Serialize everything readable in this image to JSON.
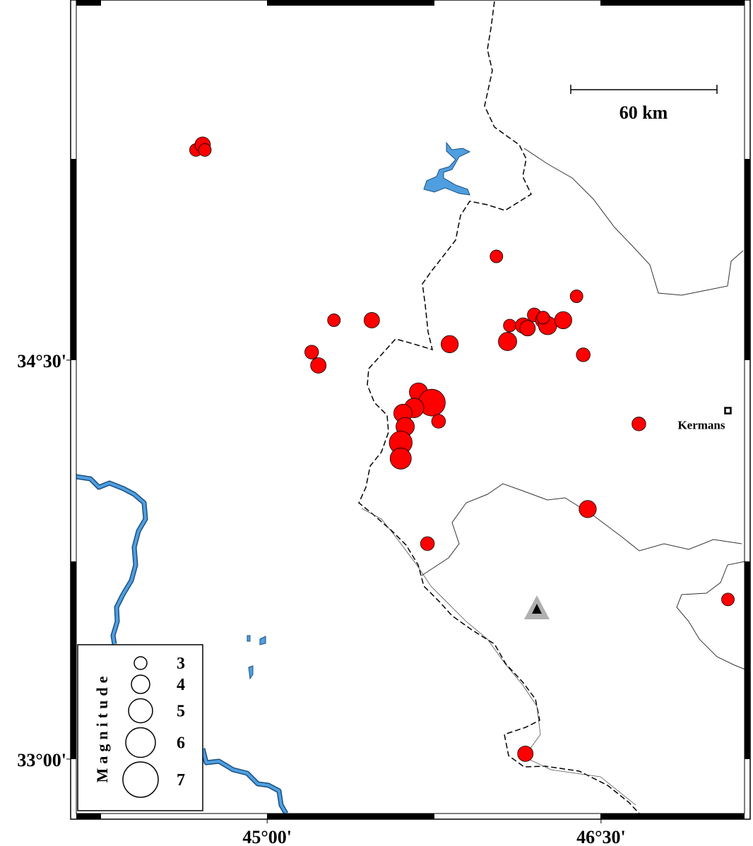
{
  "map": {
    "xlim": [
      44.117,
      47.17
    ],
    "ylim": [
      32.774,
      35.854
    ],
    "xticks": [
      {
        "value": 45,
        "label": "45°00'"
      },
      {
        "value": 46.5,
        "label": "46°30'"
      }
    ],
    "yticks": [
      {
        "value": 34.5,
        "label": "34°30'"
      },
      {
        "value": 33,
        "label": "33°00'"
      }
    ],
    "scale_bar": "60 km",
    "city": {
      "name": "Kermans",
      "lon": 47.07,
      "lat": 34.31
    },
    "event_color": "#ff0000",
    "events": {
      "lon": [
        44.68,
        44.71,
        44.72,
        46.03,
        46.39,
        45.3,
        45.47,
        45.2,
        45.23,
        45.82,
        46.08,
        46.09,
        46.15,
        46.17,
        46.2,
        46.24,
        46.26,
        46.33,
        46.24,
        46.42,
        45.68,
        45.74,
        45.66,
        45.61,
        45.77,
        45.62,
        45.6,
        45.6,
        46.67,
        46.44,
        45.72,
        47.07,
        46.16
      ],
      "lat": [
        35.29,
        35.31,
        35.29,
        34.89,
        34.74,
        34.65,
        34.65,
        34.53,
        34.48,
        34.56,
        34.57,
        34.63,
        34.63,
        34.62,
        34.67,
        34.65,
        34.63,
        34.65,
        34.66,
        34.52,
        34.38,
        34.34,
        34.32,
        34.3,
        34.27,
        34.25,
        34.19,
        34.13,
        34.26,
        33.94,
        33.81,
        33.6,
        33.02
      ],
      "magnitude": [
        3,
        3.5,
        3,
        3,
        3,
        3,
        3.5,
        3.2,
        3.5,
        3.8,
        4,
        3,
        3.5,
        3.5,
        3.2,
        3.5,
        4,
        3.8,
        3,
        3.2,
        4,
        5.5,
        4.2,
        4,
        3.2,
        4,
        4.8,
        4.5,
        3.2,
        3.8,
        3.2,
        3,
        3.5
      ]
    },
    "legend": {
      "title": "Magnitude",
      "magnitudes": [
        3,
        4,
        5,
        6,
        7
      ]
    }
  }
}
